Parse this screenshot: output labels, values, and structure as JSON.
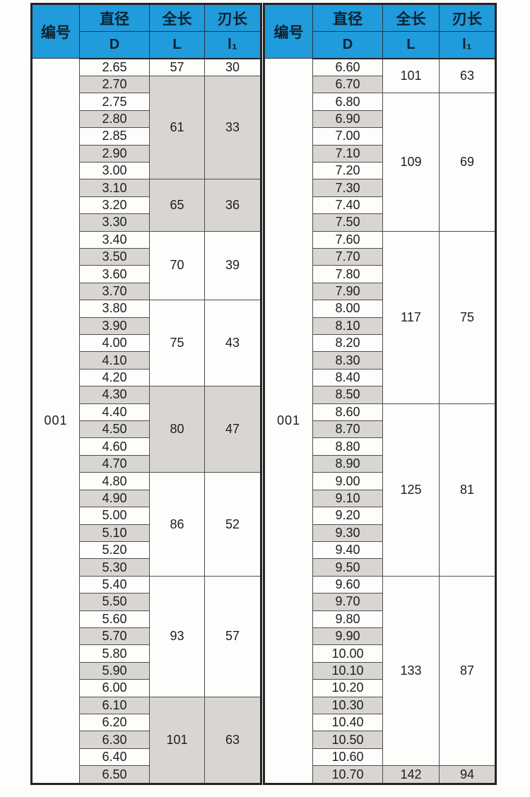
{
  "header_labels": {
    "code": "编号",
    "diameter": "直径",
    "total_length": "全长",
    "flute_length": "刃长",
    "d": "D",
    "l": "L",
    "l1": "l₁"
  },
  "colors": {
    "header_bg": "#209bdb",
    "header_text": "#10212e",
    "header_line": "#2a3640",
    "row_even": "#fdfdfb",
    "row_odd": "#d9d6d1",
    "border_inner": "#4f4f4f",
    "border_outer": "#242424",
    "body_text": "#1e1e1e"
  },
  "tables": [
    {
      "code": "001",
      "groups": [
        {
          "d": [
            "2.65"
          ],
          "l": "57",
          "l1": "30"
        },
        {
          "d": [
            "2.70",
            "2.75",
            "2.80",
            "2.85",
            "2.90",
            "3.00"
          ],
          "l": "61",
          "l1": "33"
        },
        {
          "d": [
            "3.10",
            "3.20",
            "3.30"
          ],
          "l": "65",
          "l1": "36"
        },
        {
          "d": [
            "3.40",
            "3.50",
            "3.60",
            "3.70"
          ],
          "l": "70",
          "l1": "39"
        },
        {
          "d": [
            "3.80",
            "3.90",
            "4.00",
            "4.10",
            "4.20"
          ],
          "l": "75",
          "l1": "43"
        },
        {
          "d": [
            "4.30",
            "4.40",
            "4.50",
            "4.60",
            "4.70"
          ],
          "l": "80",
          "l1": "47"
        },
        {
          "d": [
            "4.80",
            "4.90",
            "5.00",
            "5.10",
            "5.20",
            "5.30"
          ],
          "l": "86",
          "l1": "52"
        },
        {
          "d": [
            "5.40",
            "5.50",
            "5.60",
            "5.70",
            "5.80",
            "5.90",
            "6.00"
          ],
          "l": "93",
          "l1": "57"
        },
        {
          "d": [
            "6.10",
            "6.20",
            "6.30",
            "6.40",
            "6.50"
          ],
          "l": "101",
          "l1": "63"
        }
      ]
    },
    {
      "code": "001",
      "groups": [
        {
          "d": [
            "6.60",
            "6.70"
          ],
          "l": "101",
          "l1": "63"
        },
        {
          "d": [
            "6.80",
            "6.90",
            "7.00",
            "7.10",
            "7.20",
            "7.30",
            "7.40",
            "7.50"
          ],
          "l": "109",
          "l1": "69"
        },
        {
          "d": [
            "7.60",
            "7.70",
            "7.80",
            "7.90",
            "8.00",
            "8.10",
            "8.20",
            "8.30",
            "8.40",
            "8.50"
          ],
          "l": "117",
          "l1": "75"
        },
        {
          "d": [
            "8.60",
            "8.70",
            "8.80",
            "8.90",
            "9.00",
            "9.10",
            "9.20",
            "9.30",
            "9.40",
            "9.50"
          ],
          "l": "125",
          "l1": "81"
        },
        {
          "d": [
            "9.60",
            "9.70",
            "9.80",
            "9.90",
            "10.00",
            "10.10",
            "10.20",
            "10.30",
            "10.40",
            "10.50",
            "10.60"
          ],
          "l": "133",
          "l1": "87"
        },
        {
          "d": [
            "10.70"
          ],
          "l": "142",
          "l1": "94"
        }
      ]
    }
  ]
}
